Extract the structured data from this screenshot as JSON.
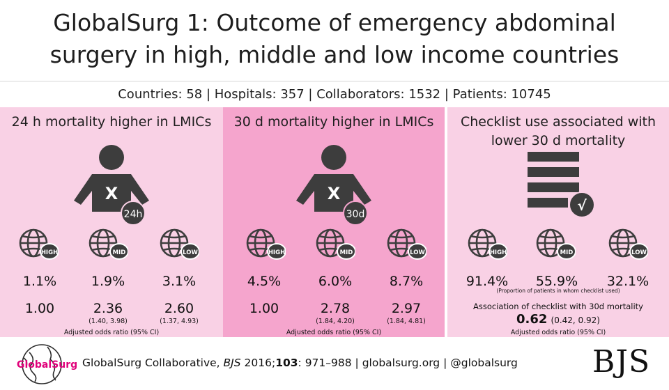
{
  "title": {
    "line1": "GlobalSurg 1: Outcome of emergency abdominal",
    "line2": "surgery in high, middle and low income countries"
  },
  "stats": "Countries: 58 | Hospitals: 357 | Collaborators: 1532 | Patients:  10745",
  "panels": [
    {
      "title": "24 h mortality higher in LMICs",
      "icon_label": "24h",
      "icon_mark": "X",
      "groups": [
        {
          "badge": "HIGH",
          "percent": "1.1%",
          "odds": "1.00",
          "ci": ""
        },
        {
          "badge": "MID",
          "percent": "1.9%",
          "odds": "2.36",
          "ci": "(1.40, 3.98)"
        },
        {
          "badge": "LOW",
          "percent": "3.1%",
          "odds": "2.60",
          "ci": "(1.37, 4.93)"
        }
      ],
      "caption": "Adjusted odds ratio (95% CI)"
    },
    {
      "title": "30 d mortality higher in LMICs",
      "icon_label": "30d",
      "icon_mark": "X",
      "groups": [
        {
          "badge": "HIGH",
          "percent": "4.5%",
          "odds": "1.00",
          "ci": ""
        },
        {
          "badge": "MID",
          "percent": "6.0%",
          "odds": "2.78",
          "ci": "(1.84, 4.20)"
        },
        {
          "badge": "LOW",
          "percent": "8.7%",
          "odds": "2.97",
          "ci": "(1.84, 4.81)"
        }
      ],
      "caption": "Adjusted odds ratio (95% CI)"
    },
    {
      "title_line1": "Checklist use associated with",
      "title_line2": "lower 30 d mortality",
      "icon_mark": "√",
      "groups": [
        {
          "badge": "HIGH",
          "percent": "91.4%"
        },
        {
          "badge": "MID",
          "percent": "55.9%"
        },
        {
          "badge": "LOW",
          "percent": "32.1%"
        }
      ],
      "note": "(Proportion of patients in whom checklist used)",
      "assoc_label": "Association of checklist with 30d mortality",
      "assoc_value": "0.62",
      "assoc_ci": "(0.42, 0.92)",
      "caption": "Adjusted odds ratio (95% CI)"
    }
  ],
  "footer": {
    "logo_text": "GlobalSurg",
    "cite_authors": "GlobalSurg Collaborative, ",
    "cite_journal": "BJS",
    "cite_year": " 2016;",
    "cite_volume": "103",
    "cite_pages": ": 971–988 | globalsurg.org | @globalsurg",
    "publisher": "BJS"
  },
  "colors": {
    "panel_light": "#f9d1e5",
    "panel_dark": "#f5a5cd",
    "icon": "#3d3d3d",
    "logo_pink": "#e0007a"
  }
}
